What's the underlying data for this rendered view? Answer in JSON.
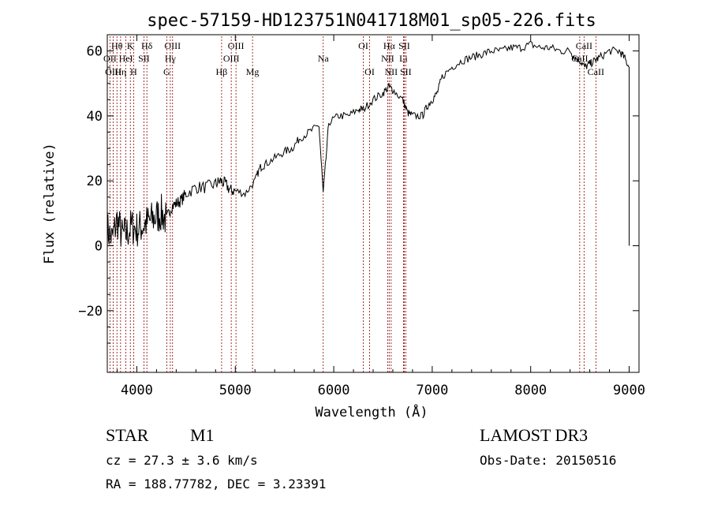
{
  "chart_data": {
    "type": "line",
    "title": "spec-57159-HD123751N041718M01_sp05-226.fits",
    "xlabel": "Wavelength (Å)",
    "ylabel": "Flux (relative)",
    "xlim": [
      3700,
      9100
    ],
    "ylim": [
      -39,
      65
    ],
    "xticks": [
      4000,
      5000,
      6000,
      7000,
      8000,
      9000
    ],
    "xtick_labels": [
      "4000",
      "5000",
      "6000",
      "7000",
      "8000",
      "9000"
    ],
    "yticks": [
      -20,
      0,
      20,
      40,
      60
    ],
    "ytick_labels": [
      "−20",
      "0",
      "20",
      "40",
      "60"
    ],
    "series": [
      {
        "name": "flux",
        "color": "#000000",
        "x": [
          3700,
          3750,
          3800,
          3850,
          3900,
          3950,
          4000,
          4050,
          4100,
          4150,
          4200,
          4250,
          4300,
          4350,
          4400,
          4450,
          4500,
          4600,
          4700,
          4800,
          4850,
          4900,
          4950,
          5000,
          5100,
          5200,
          5250,
          5300,
          5400,
          5500,
          5580,
          5650,
          5750,
          5850,
          5893,
          5950,
          6050,
          6150,
          6250,
          6300,
          6400,
          6500,
          6560,
          6600,
          6700,
          6750,
          6800,
          6900,
          6950,
          7000,
          7050,
          7100,
          7200,
          7300,
          7400,
          7500,
          7600,
          7700,
          7800,
          7900,
          8000,
          8100,
          8200,
          8300,
          8400,
          8450,
          8500,
          8550,
          8600,
          8650,
          8700,
          8800,
          8900,
          8950,
          9000
        ],
        "y": [
          5,
          2,
          8,
          3,
          4,
          6,
          5,
          6,
          7,
          8,
          9,
          10,
          8,
          12,
          13,
          14,
          16,
          18,
          18,
          19,
          20,
          19,
          17,
          17,
          16,
          20,
          24,
          25,
          27,
          29,
          30,
          33,
          35,
          37,
          16,
          38,
          40,
          40,
          42,
          42,
          45,
          47,
          49,
          48,
          45,
          41,
          40,
          40,
          43,
          45,
          47,
          52,
          55,
          57,
          58,
          59,
          60,
          60,
          61,
          61,
          62,
          61,
          61,
          60,
          60,
          58,
          57,
          55,
          56,
          57,
          58,
          60,
          60,
          58,
          55
        ]
      }
    ],
    "line_markers": [
      {
        "label": "Hθ",
        "wavelength": 3798,
        "row": 0
      },
      {
        "label": "OII",
        "wavelength": 3727,
        "row": 1
      },
      {
        "label": "OIII",
        "wavelength": 3760,
        "row": 2
      },
      {
        "label": "K",
        "wavelength": 3934,
        "row": 0
      },
      {
        "label": "HeI",
        "wavelength": 3889,
        "row": 1
      },
      {
        "label": "Hη",
        "wavelength": 3835,
        "row": 2
      },
      {
        "label": "Hδ",
        "wavelength": 4102,
        "row": 0
      },
      {
        "label": "SII",
        "wavelength": 4072,
        "row": 1
      },
      {
        "label": "H",
        "wavelength": 3968,
        "row": 2
      },
      {
        "label": "OIII",
        "wavelength": 4363,
        "row": 0
      },
      {
        "label": "Hγ",
        "wavelength": 4340,
        "row": 1
      },
      {
        "label": "G",
        "wavelength": 4304,
        "row": 2
      },
      {
        "label": "Hβ",
        "wavelength": 4861,
        "row": 2
      },
      {
        "label": "OIII",
        "wavelength": 5007,
        "row": 0
      },
      {
        "label": "OIII",
        "wavelength": 4959,
        "row": 1
      },
      {
        "label": "Mg",
        "wavelength": 5175,
        "row": 2
      },
      {
        "label": "Na",
        "wavelength": 5893,
        "row": 1
      },
      {
        "label": "OI",
        "wavelength": 6300,
        "row": 0
      },
      {
        "label": "OI",
        "wavelength": 6364,
        "row": 2
      },
      {
        "label": "Hα",
        "wavelength": 6563,
        "row": 0
      },
      {
        "label": "NII",
        "wavelength": 6548,
        "row": 1
      },
      {
        "label": "NII",
        "wavelength": 6583,
        "row": 2
      },
      {
        "label": "SII",
        "wavelength": 6716,
        "row": 0
      },
      {
        "label": "Li",
        "wavelength": 6708,
        "row": 1
      },
      {
        "label": "SII",
        "wavelength": 6731,
        "row": 2
      },
      {
        "label": "CaII",
        "wavelength": 8542,
        "row": 0
      },
      {
        "label": "CaII",
        "wavelength": 8498,
        "row": 1
      },
      {
        "label": "CaII",
        "wavelength": 8662,
        "row": 2
      }
    ],
    "colors": {
      "axes": "#000000",
      "markers": "#8b0000",
      "spectrum": "#000000"
    }
  },
  "info": {
    "object_class": "STAR",
    "subclass": "M1",
    "survey": "LAMOST DR3",
    "redshift": "cz = 27.3 ± 3.6 km/s",
    "obs_date": "Obs-Date: 20150516",
    "coords": "RA = 188.77782, DEC =   3.23391"
  }
}
